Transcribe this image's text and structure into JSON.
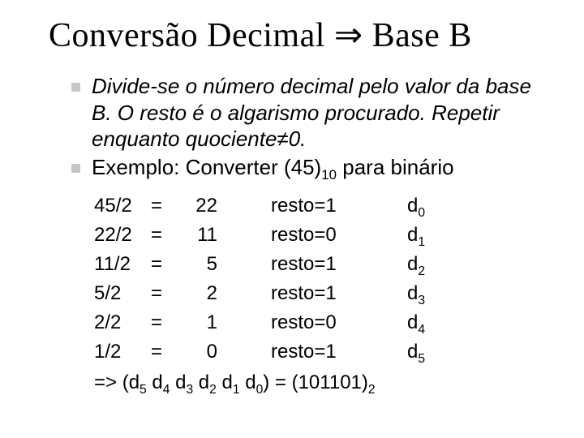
{
  "title_pre": "Conversão Decimal ",
  "title_arrow": "⇒",
  "title_post": " Base B",
  "bullets": [
    {
      "text": "Divide-se o número decimal pelo valor da base B. O resto é o algarismo procurado. Repetir enquanto quociente≠0.",
      "italic": true
    },
    {
      "text_pre": "Exemplo: Converter (45)",
      "text_sub": "10",
      "text_post": " para binário",
      "italic": false
    }
  ],
  "table": [
    {
      "a": "45/2",
      "eq": "=",
      "q": "22",
      "r": "resto=1",
      "d": "d",
      "dsub": "0"
    },
    {
      "a": "22/2",
      "eq": "=",
      "q": "11",
      "r": "resto=0",
      "d": "d",
      "dsub": "1"
    },
    {
      "a": "11/2",
      "eq": "=",
      "q": "5",
      "r": "resto=1",
      "d": "d",
      "dsub": "2"
    },
    {
      "a": "5/2",
      "eq": "=",
      "q": "2",
      "r": "resto=1",
      "d": "d",
      "dsub": "3"
    },
    {
      "a": "2/2",
      "eq": "=",
      "q": "1",
      "r": "resto=0",
      "d": "d",
      "dsub": "4"
    },
    {
      "a": "1/2",
      "eq": "=",
      "q": "0",
      "r": "resto=1",
      "d": "d",
      "dsub": "5"
    }
  ],
  "result": {
    "pre": "=> (d",
    "s5": "5",
    "sep1": " d",
    "s4": "4",
    "sep2": " d",
    "s3": "3",
    "sep3": " d",
    "s2": "2",
    "sep4": " d",
    "s1": "1",
    "sep5": " d",
    "s0": "0",
    "mid": ") = (101101)",
    "rsub": "2"
  }
}
